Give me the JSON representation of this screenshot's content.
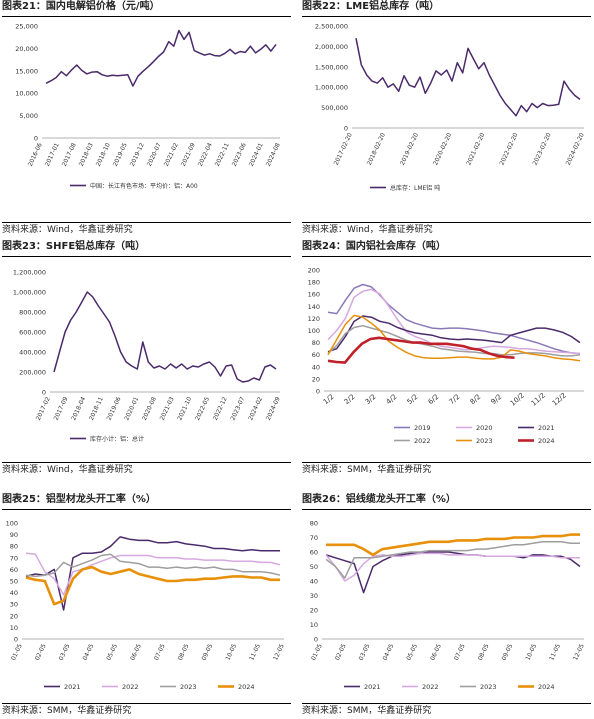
{
  "panels": [
    {
      "title": "图表21：国内电解铝价格（元/吨）",
      "source": "资料来源：Wind，华鑫证券研究"
    },
    {
      "title": "图表22：LME铝总库存（吨）",
      "source": "资料来源：Wind，华鑫证券研究"
    },
    {
      "title": "图表23：SHFE铝总库存（吨）",
      "source": "资料来源：Wind，华鑫证券研究"
    },
    {
      "title": "图表24：国内铝社会库存（吨）",
      "source": "资料来源：SMM，华鑫证券研究"
    },
    {
      "title": "图表25：铝型材龙头开工率（%）",
      "source": "资料来源：SMM，华鑫证券研究"
    },
    {
      "title": "图表26：铝线缆龙头开工率（%）",
      "source": "资料来源：SMM，华鑫证券研究"
    }
  ],
  "chart_data": [
    {
      "type": "line",
      "id": "c21",
      "title": "图表21：国内电解铝价格（元/吨）",
      "ylim": [
        0,
        25000
      ],
      "yticks": [
        "0",
        "5,000",
        "10,000",
        "15,000",
        "20,000",
        "25,000"
      ],
      "xticks": [
        "2016-06",
        "2017-01",
        "2017-08",
        "2018-03",
        "2018-10",
        "2019-05",
        "2019-12",
        "2020-07",
        "2021-02",
        "2021-09",
        "2022-04",
        "2022-11",
        "2023-06",
        "2024-01",
        "2024-08"
      ],
      "legend": [
        "中国：长江有色市场：平均价：铝：A00"
      ],
      "series": [
        {
          "color": "#4b2a6b",
          "values": [
            12200,
            12800,
            13500,
            14800,
            13900,
            15200,
            16300,
            15100,
            14300,
            14700,
            14800,
            14100,
            13800,
            14000,
            13900,
            14000,
            14100,
            11600,
            13800,
            14900,
            15900,
            17000,
            18200,
            19200,
            21500,
            20500,
            24000,
            22000,
            23600,
            19500,
            19000,
            18500,
            18800,
            18400,
            18300,
            18900,
            19800,
            18800,
            19300,
            19100,
            20500,
            19000,
            19800,
            20800,
            19400,
            20900
          ]
        }
      ]
    },
    {
      "type": "line",
      "id": "c22",
      "title": "图表22：LME铝总库存（吨）",
      "ylim": [
        0,
        2500000
      ],
      "yticks": [
        "0",
        "500,000",
        "1,000,000",
        "1,500,000",
        "2,000,000",
        "2,500,000"
      ],
      "xticks": [
        "2017-02-20",
        "2018-02-20",
        "2019-02-20",
        "2020-02-20",
        "2021-02-20",
        "2022-02-20",
        "2023-02-20",
        "2024-02-20"
      ],
      "legend": [
        "总库存：LME铝 吨"
      ],
      "series": [
        {
          "color": "#4b2a6b",
          "values": [
            2200000,
            1550000,
            1300000,
            1150000,
            1100000,
            1230000,
            1000000,
            1080000,
            900000,
            1280000,
            1050000,
            1000000,
            1250000,
            850000,
            1100000,
            1400000,
            1300000,
            1420000,
            1150000,
            1600000,
            1350000,
            1950000,
            1700000,
            1450000,
            1600000,
            1300000,
            1050000,
            800000,
            600000,
            450000,
            300000,
            550000,
            400000,
            600000,
            500000,
            600000,
            550000,
            560000,
            580000,
            1150000,
            950000,
            800000,
            700000
          ]
        }
      ]
    },
    {
      "type": "line",
      "id": "c23",
      "title": "图表23：SHFE铝总库存（吨）",
      "ylim": [
        0,
        1200000
      ],
      "yticks": [
        "0",
        "200,000",
        "400,000",
        "600,000",
        "800,000",
        "1,000,000",
        "1,200,000"
      ],
      "xticks": [
        "2017-02",
        "2017-09",
        "2018-04",
        "2018-11",
        "2019-06",
        "2020-01",
        "2020-08",
        "2021-03",
        "2021-10",
        "2022-05",
        "2022-12",
        "2023-07",
        "2024-02",
        "2024-09"
      ],
      "legend": [
        "库存小计：铝：总计"
      ],
      "series": [
        {
          "color": "#4b2a6b",
          "values": [
            200000,
            400000,
            600000,
            720000,
            800000,
            900000,
            1000000,
            950000,
            860000,
            780000,
            700000,
            560000,
            400000,
            300000,
            260000,
            230000,
            500000,
            300000,
            240000,
            260000,
            230000,
            280000,
            240000,
            280000,
            230000,
            260000,
            250000,
            280000,
            300000,
            250000,
            160000,
            260000,
            270000,
            130000,
            100000,
            110000,
            140000,
            120000,
            250000,
            270000,
            230000
          ]
        }
      ]
    },
    {
      "type": "line",
      "id": "c24",
      "title": "图表24：国内铝社会库存（吨）",
      "ylim": [
        0,
        200
      ],
      "yticks": [
        "0",
        "20",
        "40",
        "60",
        "80",
        "100",
        "120",
        "140",
        "160",
        "180",
        "200"
      ],
      "xticks": [
        "1/2",
        "2/2",
        "3/2",
        "4/2",
        "5/2",
        "6/2",
        "7/2",
        "8/2",
        "9/2",
        "10/2",
        "11/2",
        "12/2"
      ],
      "legend": [
        "2019",
        "2020",
        "2021",
        "2022",
        "2023",
        "2024"
      ],
      "series": [
        {
          "name": "2019",
          "color": "#8b78b8",
          "values": [
            130,
            128,
            150,
            170,
            176,
            172,
            158,
            142,
            130,
            118,
            112,
            108,
            104,
            103,
            104,
            104,
            103,
            101,
            99,
            96,
            94,
            92,
            88,
            84,
            80,
            75,
            70,
            66,
            63,
            62
          ]
        },
        {
          "name": "2020",
          "color": "#d6a8e0",
          "values": [
            85,
            100,
            120,
            155,
            165,
            168,
            160,
            140,
            118,
            98,
            90,
            85,
            78,
            74,
            72,
            70,
            68,
            70,
            72,
            74,
            73,
            72,
            70,
            70,
            68,
            66,
            65,
            64,
            63,
            62
          ]
        },
        {
          "name": "2021",
          "color": "#4b2a6b",
          "values": [
            65,
            70,
            90,
            115,
            124,
            122,
            115,
            112,
            105,
            100,
            96,
            94,
            92,
            88,
            86,
            85,
            86,
            85,
            84,
            82,
            80,
            92,
            96,
            100,
            104,
            104,
            101,
            97,
            90,
            80
          ]
        },
        {
          "name": "2022",
          "color": "#9e9e9e",
          "values": [
            62,
            75,
            95,
            105,
            108,
            104,
            100,
            96,
            90,
            84,
            80,
            77,
            74,
            70,
            68,
            66,
            65,
            64,
            62,
            62,
            60,
            60,
            62,
            63,
            63,
            62,
            60,
            58,
            58,
            60
          ]
        },
        {
          "name": "2023",
          "color": "#e8900a",
          "values": [
            60,
            85,
            110,
            125,
            122,
            112,
            100,
            82,
            72,
            64,
            58,
            55,
            54,
            54,
            55,
            56,
            56,
            54,
            53,
            53,
            56,
            68,
            66,
            62,
            60,
            58,
            55,
            53,
            52,
            50
          ]
        },
        {
          "name": "2024",
          "color": "#c0202a",
          "values": [
            50,
            48,
            47,
            64,
            78,
            86,
            88,
            86,
            84,
            82,
            80,
            80,
            78,
            78,
            78,
            76,
            74,
            70,
            68,
            62,
            58,
            56,
            55
          ]
        }
      ]
    },
    {
      "type": "line",
      "id": "c25",
      "title": "图表25：铝型材龙头开工率（%）",
      "ylim": [
        0,
        100
      ],
      "yticks": [
        "0",
        "10",
        "20",
        "30",
        "40",
        "50",
        "60",
        "70",
        "80",
        "90",
        "100"
      ],
      "xticks": [
        "01-05",
        "02-05",
        "03-05",
        "04-05",
        "05-05",
        "06-05",
        "07-05",
        "08-05",
        "09-05",
        "10-05",
        "11-05",
        "12-05"
      ],
      "legend": [
        "2021",
        "2022",
        "2023",
        "2024"
      ],
      "series": [
        {
          "name": "2021",
          "color": "#4b2a6b",
          "values": [
            54,
            56,
            55,
            60,
            25,
            70,
            74,
            74,
            75,
            80,
            88,
            86,
            85,
            85,
            83,
            83,
            84,
            82,
            81,
            80,
            78,
            78,
            77,
            76,
            77,
            76,
            76,
            76
          ]
        },
        {
          "name": "2022",
          "color": "#d6a8e0",
          "values": [
            74,
            73,
            58,
            52,
            38,
            58,
            60,
            64,
            67,
            70,
            72,
            72,
            72,
            72,
            70,
            70,
            70,
            69,
            69,
            68,
            68,
            68,
            67,
            67,
            67,
            66,
            66,
            64
          ]
        },
        {
          "name": "2023",
          "color": "#9e9e9e",
          "values": [
            55,
            54,
            55,
            57,
            66,
            62,
            65,
            68,
            72,
            73,
            67,
            66,
            65,
            62,
            62,
            61,
            62,
            61,
            62,
            61,
            62,
            60,
            60,
            58,
            58,
            58,
            57,
            55
          ]
        },
        {
          "name": "2024",
          "color": "#e8900a",
          "values": [
            53,
            51,
            50,
            30,
            33,
            52,
            60,
            62,
            58,
            56,
            58,
            60,
            56,
            54,
            52,
            50,
            50,
            51,
            51,
            52,
            52,
            53,
            54,
            54,
            53,
            53,
            51,
            51
          ]
        }
      ]
    },
    {
      "type": "line",
      "id": "c26",
      "title": "图表26：铝线缆龙头开工率（%）",
      "ylim": [
        0,
        80
      ],
      "yticks": [
        "0",
        "10",
        "20",
        "30",
        "40",
        "50",
        "60",
        "70",
        "80"
      ],
      "xticks": [
        "01-05",
        "02-05",
        "03-05",
        "04-05",
        "05-05",
        "06-05",
        "07-05",
        "08-05",
        "09-05",
        "10-05",
        "11-05",
        "12-05"
      ],
      "legend": [
        "2021",
        "2022",
        "2023",
        "2024"
      ],
      "series": [
        {
          "name": "2021",
          "color": "#4b2a6b",
          "values": [
            58,
            56,
            54,
            52,
            32,
            50,
            54,
            57,
            58,
            59,
            59,
            60,
            60,
            60,
            59,
            58,
            58,
            57,
            57,
            57,
            57,
            56,
            58,
            58,
            57,
            57,
            55,
            50
          ]
        },
        {
          "name": "2022",
          "color": "#d6a8e0",
          "values": [
            58,
            50,
            40,
            44,
            52,
            57,
            58,
            57,
            57,
            58,
            59,
            59,
            59,
            58,
            58,
            58,
            58,
            57,
            57,
            57,
            57,
            57,
            57,
            57,
            57,
            56,
            56,
            56
          ]
        },
        {
          "name": "2023",
          "color": "#9e9e9e",
          "values": [
            55,
            50,
            42,
            56,
            56,
            56,
            57,
            58,
            59,
            60,
            60,
            61,
            61,
            61,
            61,
            61,
            62,
            62,
            63,
            64,
            65,
            65,
            66,
            67,
            67,
            67,
            66,
            66
          ]
        },
        {
          "name": "2024",
          "color": "#e8900a",
          "values": [
            65,
            65,
            65,
            65,
            62,
            58,
            62,
            63,
            64,
            65,
            66,
            67,
            67,
            67,
            68,
            68,
            68,
            69,
            69,
            69,
            70,
            70,
            70,
            71,
            71,
            71,
            72,
            72
          ]
        }
      ]
    }
  ]
}
